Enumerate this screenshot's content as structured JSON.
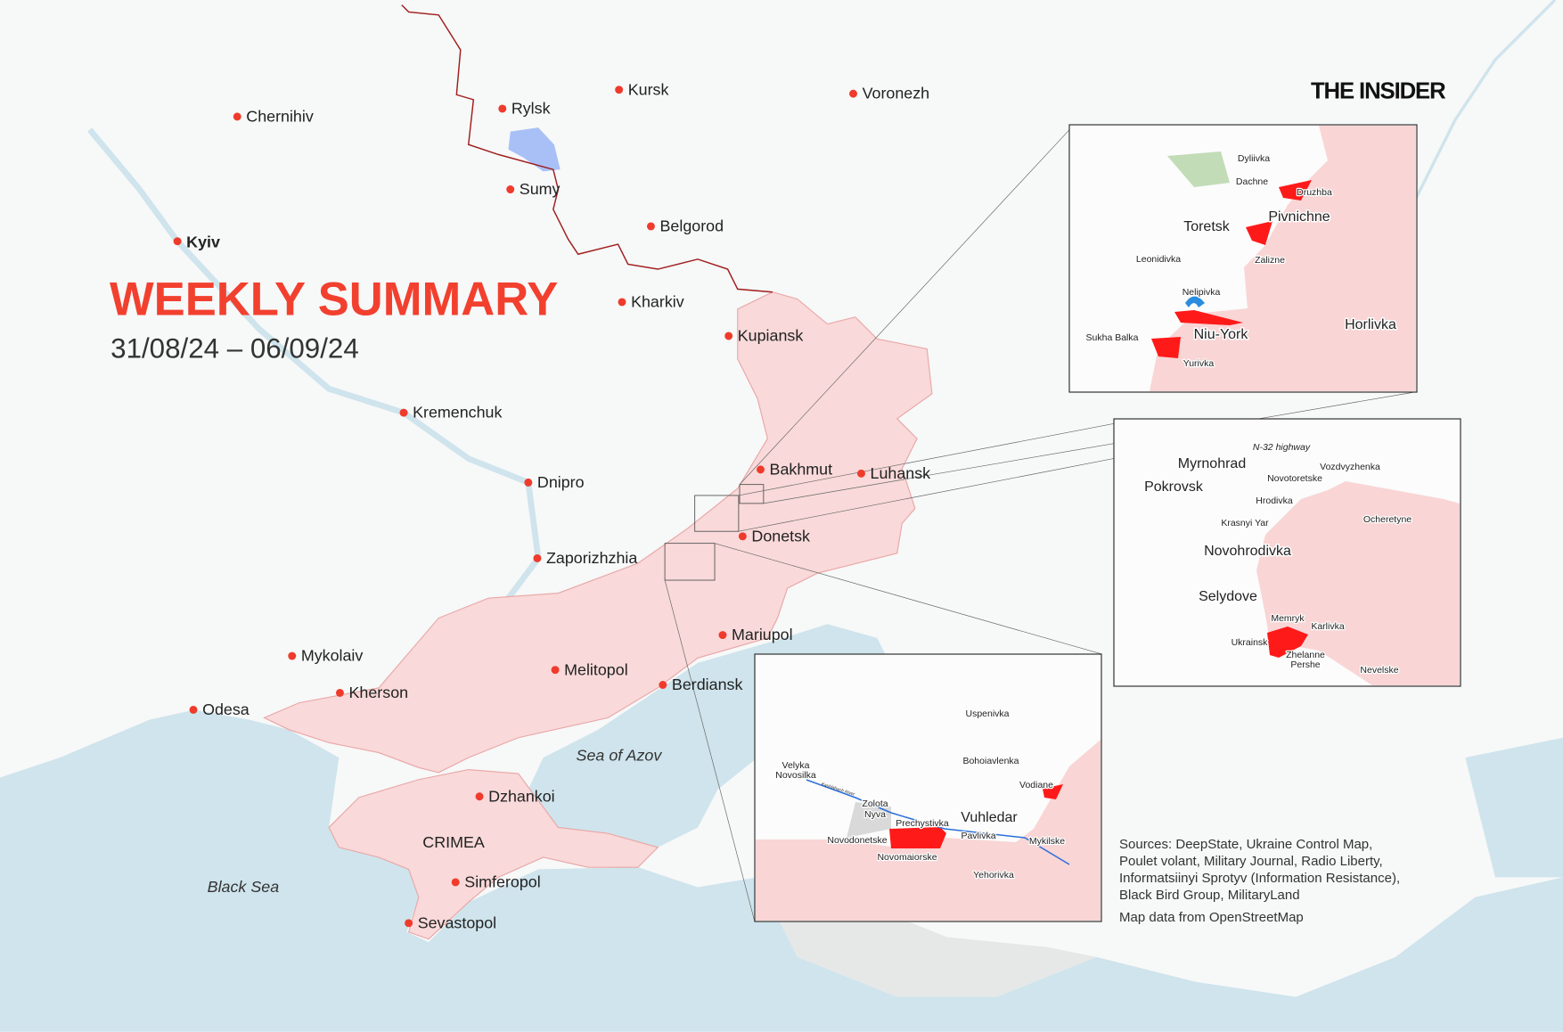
{
  "header": {
    "title": "WEEKLY SUMMARY",
    "date_range": "31/08/24 – 06/09/24",
    "logo": "THE INSIDER"
  },
  "colors": {
    "accent": "#f2402f",
    "occupied": "#f9d9d9",
    "advance": "#ff0000",
    "water": "#cfe4ec",
    "border": "#a01e1e",
    "ukr_advance": "#8fb0f5"
  },
  "cities": [
    {
      "name": "Chernihiv"
    },
    {
      "name": "Rylsk"
    },
    {
      "name": "Kursk"
    },
    {
      "name": "Voronezh"
    },
    {
      "name": "Sumy"
    },
    {
      "name": "Kyiv"
    },
    {
      "name": "Belgorod"
    },
    {
      "name": "Kharkiv"
    },
    {
      "name": "Kupiansk"
    },
    {
      "name": "Kremenchuk"
    },
    {
      "name": "Dnipro"
    },
    {
      "name": "Bakhmut"
    },
    {
      "name": "Luhansk"
    },
    {
      "name": "Donetsk"
    },
    {
      "name": "Zaporizhzhia"
    },
    {
      "name": "Mariupol"
    },
    {
      "name": "Mykolaiv"
    },
    {
      "name": "Melitopol"
    },
    {
      "name": "Kherson"
    },
    {
      "name": "Berdiansk"
    },
    {
      "name": "Odesa"
    },
    {
      "name": "Dzhankoi"
    },
    {
      "name": "Simferopol"
    },
    {
      "name": "Sevastopol"
    }
  ],
  "regions": {
    "crimea": "CRIMEA",
    "sea_of_azov": "Sea of Azov",
    "black_sea": "Black Sea"
  },
  "insets": {
    "toretsk": [
      "Dyliivka",
      "Dachne",
      "Druzhba",
      "Pivnichne",
      "Toretsk",
      "Leonidivka",
      "Zalizne",
      "Nelipivka",
      "Niu-York",
      "Sukha Balka",
      "Yurivka",
      "Horlivka"
    ],
    "pokrovsk": [
      "N-32 highway",
      "Myrnohrad",
      "Pokrovsk",
      "Vozdvyzhenka",
      "Novotoretske",
      "Hrodivka",
      "Ocheretyne",
      "Krasnyi Yar",
      "Novohrodivka",
      "Selydove",
      "Memryk",
      "Karlivka",
      "Ukrainsk",
      "Zhelanne",
      "Pershe",
      "Nevelske"
    ],
    "vuhledar": [
      "Uspenivka",
      "Bohoiavlenka",
      "Velyka",
      "Novosilka",
      "Vodiane",
      "Zolota",
      "Nyva",
      "Vuhledar",
      "Prechystivka",
      "Pavlivka",
      "Mykilske",
      "Novodonetske",
      "Novomaiorske",
      "Yehorivka",
      "Kashlahach River"
    ]
  },
  "sources": [
    "Sources: DeepState, Ukraine Control Map,",
    "Poulet volant, Military Journal, Radio Liberty,",
    "Informatsiinyi Sprotyv (Information Resistance),",
    "Black Bird Group, MilitaryLand"
  ],
  "map_credit": "Map data from OpenStreetMap"
}
